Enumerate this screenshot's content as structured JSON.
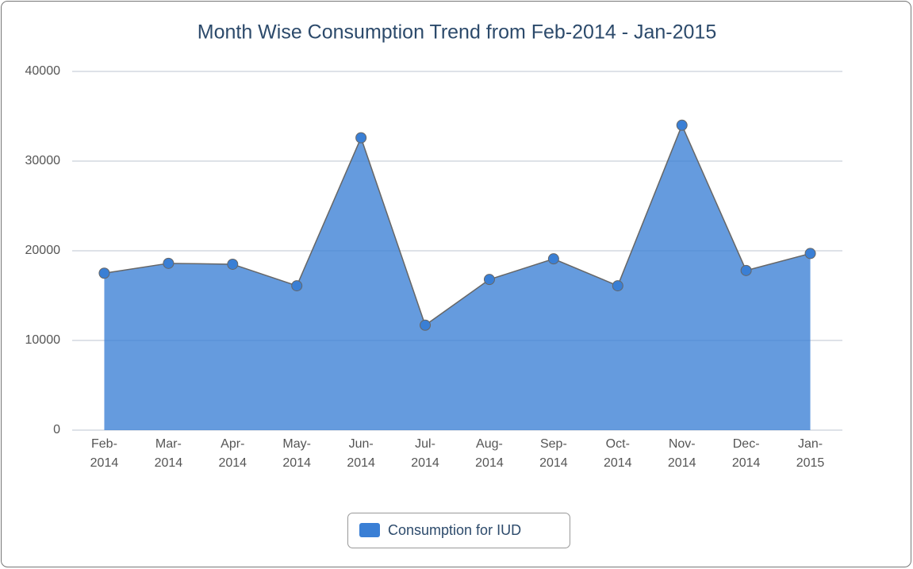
{
  "chart_data": {
    "type": "area",
    "title": "Month Wise Consumption Trend from Feb-2014 - Jan-2015",
    "categories": [
      "Feb-2014",
      "Mar-2014",
      "Apr-2014",
      "May-2014",
      "Jun-2014",
      "Jul-2014",
      "Aug-2014",
      "Sep-2014",
      "Oct-2014",
      "Nov-2014",
      "Dec-2014",
      "Jan-2015"
    ],
    "series": [
      {
        "name": "Consumption for IUD",
        "color": "#3a7fd5",
        "values": [
          17500,
          18600,
          18500,
          16100,
          32600,
          11700,
          16800,
          19100,
          16100,
          34000,
          17800,
          19700
        ]
      }
    ],
    "ylim": [
      0,
      40000
    ],
    "yticks": [
      0,
      10000,
      20000,
      30000,
      40000
    ],
    "grid": true,
    "legend": "bottom"
  }
}
